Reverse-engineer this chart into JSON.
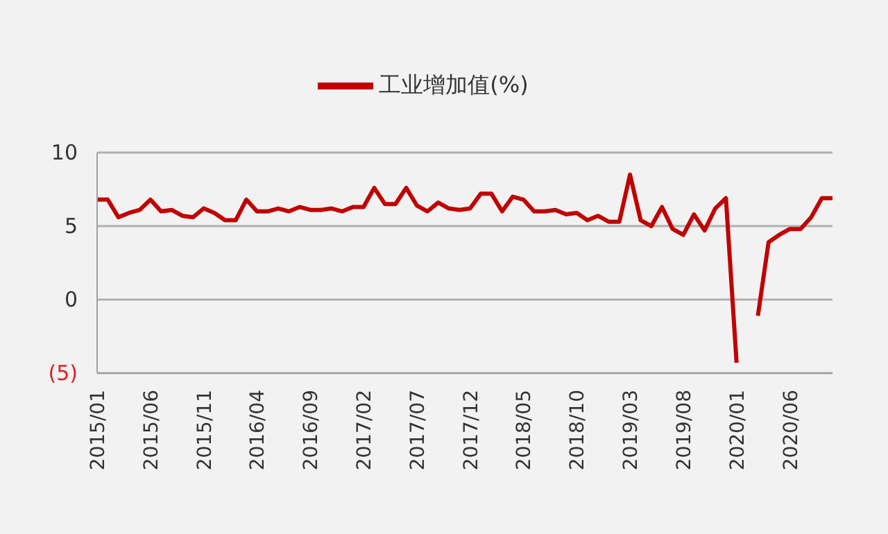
{
  "chart_data": {
    "type": "line",
    "categories": [
      "2015/01",
      null,
      null,
      null,
      null,
      "2015/06",
      null,
      null,
      null,
      null,
      "2015/11",
      null,
      null,
      null,
      null,
      "2016/04",
      null,
      null,
      null,
      null,
      "2016/09",
      null,
      null,
      null,
      null,
      "2017/02",
      null,
      null,
      null,
      null,
      "2017/07",
      null,
      null,
      null,
      null,
      "2017/12",
      null,
      null,
      null,
      null,
      "2018/05",
      null,
      null,
      null,
      null,
      "2018/10",
      null,
      null,
      null,
      null,
      "2019/03",
      null,
      null,
      null,
      null,
      "2019/08",
      null,
      null,
      null,
      null,
      "2020/01",
      null,
      null,
      null,
      null,
      "2020/06",
      null,
      null,
      null,
      null
    ],
    "series": [
      {
        "name": "工业增加值(%)",
        "color": "#c00000",
        "values": [
          6.8,
          6.8,
          5.6,
          5.9,
          6.1,
          6.8,
          6.0,
          6.1,
          5.7,
          5.6,
          6.2,
          5.9,
          5.4,
          5.4,
          6.8,
          6.0,
          6.0,
          6.2,
          6.0,
          6.3,
          6.1,
          6.1,
          6.2,
          6.0,
          6.3,
          6.3,
          7.6,
          6.5,
          6.5,
          7.6,
          6.4,
          6.0,
          6.6,
          6.2,
          6.1,
          6.2,
          7.2,
          7.2,
          6.0,
          7.0,
          6.8,
          6.0,
          6.0,
          6.1,
          5.8,
          5.9,
          5.4,
          5.7,
          5.3,
          5.3,
          8.5,
          5.4,
          5.0,
          6.3,
          4.8,
          4.4,
          5.8,
          4.7,
          6.2,
          6.9,
          -4.3,
          null,
          -1.1,
          3.9,
          4.4,
          4.8,
          4.8,
          5.6,
          6.9,
          6.9
        ]
      }
    ],
    "ylim": [
      -5,
      10
    ],
    "yticks": [
      10,
      5,
      0,
      {
        "value": -5,
        "label": "(5)"
      }
    ],
    "grid": "y",
    "legend": "top",
    "marker": "none",
    "line_style": "solid"
  }
}
